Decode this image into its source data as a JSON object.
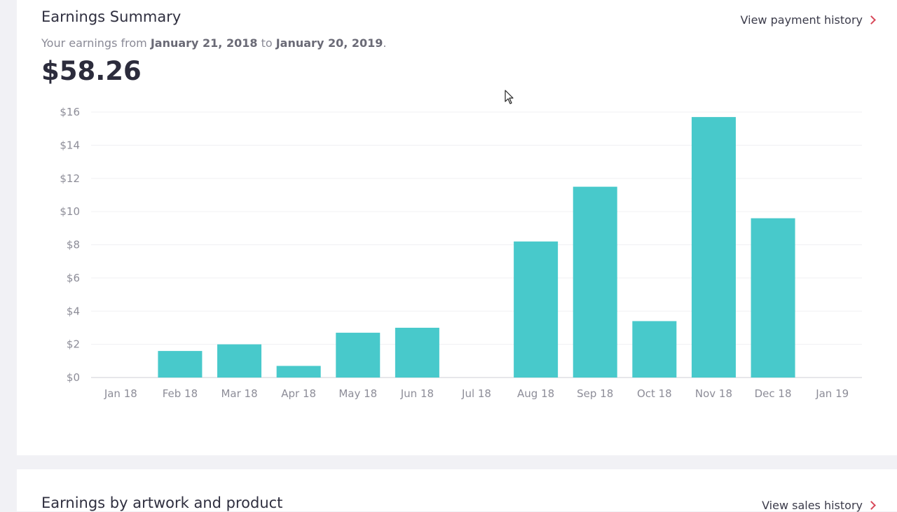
{
  "summary": {
    "title": "Earnings Summary",
    "view_link": "View payment history",
    "subtitle_prefix": "Your earnings from ",
    "start_date": "January 21, 2018",
    "subtitle_mid": " to ",
    "end_date": "January 20, 2019",
    "subtitle_suffix": ".",
    "total": "$58.26"
  },
  "artwork": {
    "title": "Earnings by artwork and product",
    "view_link": "View sales history"
  },
  "colors": {
    "bar": "#48c9cb",
    "chevron": "#d8495a"
  },
  "chart_data": {
    "type": "bar",
    "categories": [
      "Jan 18",
      "Feb 18",
      "Mar 18",
      "Apr 18",
      "May 18",
      "Jun 18",
      "Jul 18",
      "Aug 18",
      "Sep 18",
      "Oct 18",
      "Nov 18",
      "Dec 18",
      "Jan 19"
    ],
    "values": [
      0,
      1.6,
      2.0,
      0.7,
      2.7,
      3.0,
      0,
      8.2,
      11.5,
      3.4,
      15.7,
      9.6,
      0
    ],
    "yticks": [
      "$0",
      "$2",
      "$4",
      "$6",
      "$8",
      "$10",
      "$12",
      "$14",
      "$16"
    ],
    "ylim": [
      0,
      16
    ],
    "grid": true
  }
}
